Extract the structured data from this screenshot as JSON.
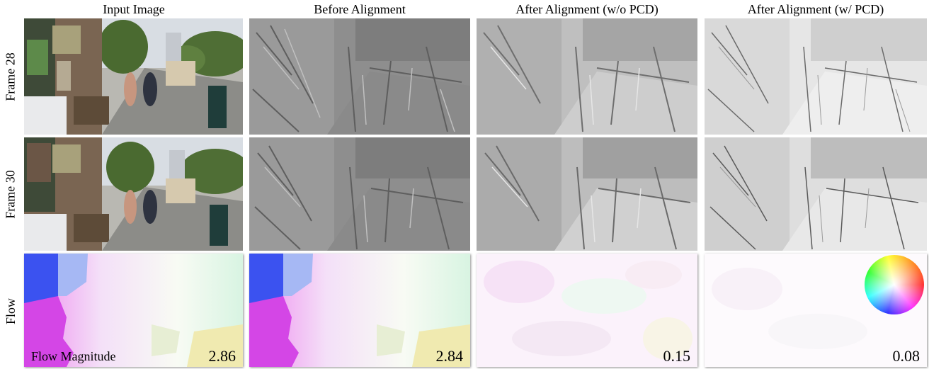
{
  "columns": [
    {
      "title": "Input Image"
    },
    {
      "title": "Before Alignment"
    },
    {
      "title": "After Alignment (w/o PCD)"
    },
    {
      "title": "After Alignment (w/ PCD)"
    }
  ],
  "rows": [
    {
      "label": "Frame 28"
    },
    {
      "label": "Frame 30"
    },
    {
      "label": "Flow"
    }
  ],
  "flow": {
    "magnitude_label": "Flow Magnitude",
    "values": [
      "2.86",
      "2.84",
      "0.15",
      "0.08"
    ]
  }
}
